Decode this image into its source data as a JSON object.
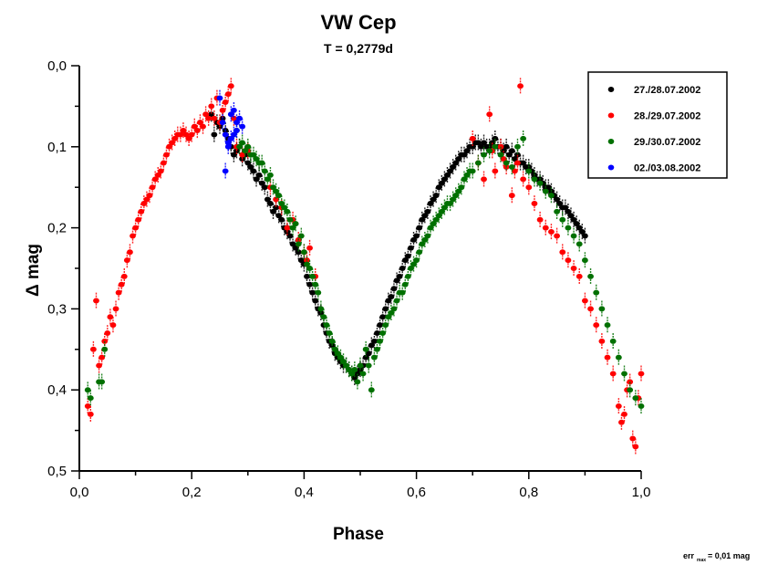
{
  "chart_data": {
    "type": "scatter",
    "title": "VW Cep",
    "subtitle": "T = 0,2779d",
    "xlabel": "Phase",
    "ylabel": "Δ mag",
    "xlim": [
      0.0,
      1.0
    ],
    "ylim": [
      0.0,
      0.5
    ],
    "y_inverted": true,
    "x_ticks": [
      "0,0",
      "0,2",
      "0,4",
      "0,6",
      "0,8",
      "1,0"
    ],
    "x_tick_values": [
      0.0,
      0.2,
      0.4,
      0.6,
      0.8,
      1.0
    ],
    "x_minor_tick_values": [
      0.1,
      0.3,
      0.5,
      0.7,
      0.9
    ],
    "y_ticks": [
      "0,0",
      "0,1",
      "0,2",
      "0,3",
      "0,4",
      "0,5"
    ],
    "y_tick_values": [
      0.0,
      0.1,
      0.2,
      0.3,
      0.4,
      0.5
    ],
    "y_minor_tick_values": [
      0.05,
      0.15,
      0.25,
      0.35,
      0.45
    ],
    "grid": false,
    "legend_position": "top-right",
    "error_bar_max": 0.01,
    "annotation": "err_max = 0,01 mag",
    "series": [
      {
        "name": "27./28.07.2002",
        "color": "#000000",
        "x": [
          0.235,
          0.24,
          0.245,
          0.25,
          0.255,
          0.26,
          0.265,
          0.27,
          0.275,
          0.28,
          0.285,
          0.29,
          0.295,
          0.3,
          0.305,
          0.31,
          0.315,
          0.32,
          0.325,
          0.33,
          0.335,
          0.34,
          0.345,
          0.35,
          0.355,
          0.36,
          0.365,
          0.37,
          0.375,
          0.38,
          0.385,
          0.39,
          0.395,
          0.4,
          0.405,
          0.41,
          0.415,
          0.42,
          0.425,
          0.43,
          0.435,
          0.44,
          0.445,
          0.45,
          0.455,
          0.46,
          0.465,
          0.47,
          0.475,
          0.48,
          0.485,
          0.49,
          0.495,
          0.5,
          0.505,
          0.51,
          0.515,
          0.52,
          0.525,
          0.53,
          0.535,
          0.54,
          0.545,
          0.55,
          0.555,
          0.56,
          0.565,
          0.57,
          0.575,
          0.58,
          0.585,
          0.59,
          0.595,
          0.6,
          0.605,
          0.61,
          0.615,
          0.62,
          0.625,
          0.63,
          0.635,
          0.64,
          0.645,
          0.65,
          0.655,
          0.66,
          0.665,
          0.67,
          0.675,
          0.68,
          0.685,
          0.69,
          0.695,
          0.7,
          0.705,
          0.71,
          0.715,
          0.72,
          0.725,
          0.73,
          0.735,
          0.74,
          0.745,
          0.75,
          0.755,
          0.76,
          0.765,
          0.77,
          0.775,
          0.78,
          0.785,
          0.79,
          0.795,
          0.8,
          0.805,
          0.81,
          0.815,
          0.82,
          0.825,
          0.83,
          0.835,
          0.84,
          0.845,
          0.85,
          0.855,
          0.86,
          0.865,
          0.87,
          0.875,
          0.88,
          0.885,
          0.89,
          0.895,
          0.9
        ],
        "y": [
          0.06,
          0.085,
          0.07,
          0.075,
          0.065,
          0.08,
          0.09,
          0.1,
          0.11,
          0.105,
          0.1,
          0.115,
          0.11,
          0.12,
          0.125,
          0.13,
          0.14,
          0.135,
          0.145,
          0.15,
          0.165,
          0.17,
          0.18,
          0.175,
          0.185,
          0.19,
          0.2,
          0.205,
          0.21,
          0.22,
          0.225,
          0.23,
          0.24,
          0.245,
          0.26,
          0.27,
          0.28,
          0.29,
          0.3,
          0.305,
          0.32,
          0.33,
          0.34,
          0.345,
          0.355,
          0.36,
          0.365,
          0.37,
          0.37,
          0.375,
          0.38,
          0.385,
          0.38,
          0.375,
          0.37,
          0.36,
          0.355,
          0.345,
          0.34,
          0.33,
          0.32,
          0.31,
          0.3,
          0.29,
          0.285,
          0.275,
          0.265,
          0.26,
          0.25,
          0.24,
          0.235,
          0.225,
          0.215,
          0.21,
          0.2,
          0.19,
          0.185,
          0.18,
          0.17,
          0.165,
          0.16,
          0.15,
          0.145,
          0.14,
          0.135,
          0.13,
          0.125,
          0.12,
          0.115,
          0.11,
          0.11,
          0.105,
          0.1,
          0.1,
          0.095,
          0.095,
          0.1,
          0.095,
          0.1,
          0.1,
          0.095,
          0.09,
          0.1,
          0.1,
          0.105,
          0.1,
          0.11,
          0.105,
          0.115,
          0.11,
          0.12,
          0.12,
          0.125,
          0.125,
          0.13,
          0.135,
          0.14,
          0.14,
          0.145,
          0.15,
          0.15,
          0.155,
          0.16,
          0.165,
          0.17,
          0.175,
          0.175,
          0.18,
          0.185,
          0.19,
          0.195,
          0.2,
          0.205,
          0.21
        ]
      },
      {
        "name": "28./29.07.2002",
        "color": "#ff0000",
        "x": [
          0.015,
          0.02,
          0.025,
          0.03,
          0.035,
          0.04,
          0.045,
          0.05,
          0.055,
          0.06,
          0.065,
          0.07,
          0.075,
          0.08,
          0.085,
          0.09,
          0.095,
          0.1,
          0.105,
          0.11,
          0.115,
          0.12,
          0.125,
          0.13,
          0.135,
          0.14,
          0.145,
          0.15,
          0.155,
          0.16,
          0.165,
          0.17,
          0.175,
          0.18,
          0.185,
          0.19,
          0.195,
          0.2,
          0.205,
          0.21,
          0.215,
          0.22,
          0.225,
          0.23,
          0.235,
          0.24,
          0.245,
          0.25,
          0.255,
          0.26,
          0.265,
          0.27,
          0.275,
          0.28,
          0.29,
          0.3,
          0.34,
          0.35,
          0.36,
          0.37,
          0.38,
          0.39,
          0.4,
          0.405,
          0.41,
          0.42,
          0.7,
          0.71,
          0.72,
          0.73,
          0.735,
          0.74,
          0.75,
          0.755,
          0.76,
          0.77,
          0.775,
          0.78,
          0.785,
          0.79,
          0.8,
          0.81,
          0.82,
          0.83,
          0.84,
          0.85,
          0.86,
          0.87,
          0.88,
          0.89,
          0.9,
          0.91,
          0.92,
          0.93,
          0.94,
          0.95,
          0.96,
          0.965,
          0.97,
          0.975,
          0.98,
          0.985,
          0.99,
          0.995,
          1.0
        ],
        "y": [
          0.42,
          0.43,
          0.35,
          0.29,
          0.37,
          0.36,
          0.34,
          0.33,
          0.31,
          0.32,
          0.3,
          0.28,
          0.27,
          0.26,
          0.24,
          0.23,
          0.21,
          0.2,
          0.19,
          0.18,
          0.17,
          0.165,
          0.16,
          0.15,
          0.14,
          0.135,
          0.13,
          0.12,
          0.11,
          0.1,
          0.095,
          0.09,
          0.085,
          0.085,
          0.08,
          0.085,
          0.09,
          0.085,
          0.075,
          0.08,
          0.07,
          0.075,
          0.06,
          0.065,
          0.05,
          0.065,
          0.04,
          0.07,
          0.055,
          0.045,
          0.035,
          0.025,
          0.065,
          0.1,
          0.11,
          0.105,
          0.15,
          0.165,
          0.175,
          0.2,
          0.19,
          0.215,
          0.23,
          0.24,
          0.225,
          0.26,
          0.09,
          0.12,
          0.14,
          0.06,
          0.105,
          0.13,
          0.1,
          0.115,
          0.125,
          0.16,
          0.13,
          0.12,
          0.025,
          0.14,
          0.15,
          0.17,
          0.19,
          0.2,
          0.205,
          0.21,
          0.23,
          0.24,
          0.25,
          0.26,
          0.29,
          0.3,
          0.32,
          0.34,
          0.36,
          0.38,
          0.42,
          0.44,
          0.43,
          0.4,
          0.39,
          0.46,
          0.47,
          0.41,
          0.38
        ]
      },
      {
        "name": "29./30.07.2002",
        "color": "#007000",
        "x": [
          0.015,
          0.02,
          0.035,
          0.04,
          0.045,
          0.28,
          0.285,
          0.29,
          0.295,
          0.3,
          0.305,
          0.31,
          0.315,
          0.32,
          0.325,
          0.33,
          0.335,
          0.34,
          0.345,
          0.35,
          0.355,
          0.36,
          0.365,
          0.37,
          0.375,
          0.38,
          0.385,
          0.39,
          0.395,
          0.4,
          0.405,
          0.41,
          0.415,
          0.42,
          0.425,
          0.43,
          0.435,
          0.44,
          0.445,
          0.45,
          0.455,
          0.46,
          0.465,
          0.47,
          0.475,
          0.48,
          0.485,
          0.49,
          0.495,
          0.5,
          0.505,
          0.51,
          0.515,
          0.52,
          0.525,
          0.53,
          0.535,
          0.54,
          0.545,
          0.55,
          0.555,
          0.56,
          0.565,
          0.57,
          0.575,
          0.58,
          0.585,
          0.59,
          0.595,
          0.6,
          0.605,
          0.61,
          0.615,
          0.62,
          0.625,
          0.63,
          0.635,
          0.64,
          0.645,
          0.65,
          0.655,
          0.66,
          0.665,
          0.67,
          0.675,
          0.68,
          0.685,
          0.69,
          0.695,
          0.7,
          0.71,
          0.72,
          0.73,
          0.74,
          0.75,
          0.76,
          0.77,
          0.78,
          0.79,
          0.8,
          0.81,
          0.82,
          0.83,
          0.84,
          0.85,
          0.86,
          0.87,
          0.88,
          0.89,
          0.9,
          0.91,
          0.92,
          0.93,
          0.94,
          0.95,
          0.96,
          0.97,
          0.98,
          0.99,
          1.0
        ],
        "y": [
          0.4,
          0.41,
          0.39,
          0.39,
          0.35,
          0.08,
          0.1,
          0.095,
          0.105,
          0.1,
          0.11,
          0.11,
          0.115,
          0.12,
          0.12,
          0.13,
          0.14,
          0.135,
          0.15,
          0.155,
          0.16,
          0.17,
          0.175,
          0.18,
          0.19,
          0.2,
          0.195,
          0.22,
          0.21,
          0.23,
          0.245,
          0.25,
          0.26,
          0.27,
          0.28,
          0.3,
          0.31,
          0.32,
          0.33,
          0.34,
          0.35,
          0.355,
          0.36,
          0.365,
          0.37,
          0.375,
          0.38,
          0.375,
          0.39,
          0.37,
          0.38,
          0.35,
          0.37,
          0.4,
          0.36,
          0.35,
          0.34,
          0.33,
          0.32,
          0.31,
          0.305,
          0.3,
          0.29,
          0.28,
          0.28,
          0.27,
          0.26,
          0.25,
          0.245,
          0.24,
          0.23,
          0.22,
          0.215,
          0.21,
          0.2,
          0.195,
          0.19,
          0.185,
          0.18,
          0.175,
          0.17,
          0.17,
          0.165,
          0.16,
          0.155,
          0.15,
          0.14,
          0.135,
          0.13,
          0.13,
          0.12,
          0.11,
          0.105,
          0.1,
          0.11,
          0.12,
          0.125,
          0.1,
          0.09,
          0.13,
          0.14,
          0.145,
          0.155,
          0.16,
          0.18,
          0.19,
          0.2,
          0.21,
          0.22,
          0.24,
          0.26,
          0.28,
          0.3,
          0.32,
          0.34,
          0.36,
          0.38,
          0.4,
          0.41,
          0.42
        ]
      },
      {
        "name": "02./03.08.2002",
        "color": "#0000ff",
        "x": [
          0.25,
          0.255,
          0.26,
          0.265,
          0.27,
          0.275,
          0.28,
          0.285,
          0.29,
          0.26,
          0.265,
          0.27,
          0.275,
          0.28
        ],
        "y": [
          0.04,
          0.07,
          0.085,
          0.095,
          0.06,
          0.055,
          0.07,
          0.065,
          0.075,
          0.13,
          0.1,
          0.09,
          0.085,
          0.08
        ]
      }
    ]
  }
}
